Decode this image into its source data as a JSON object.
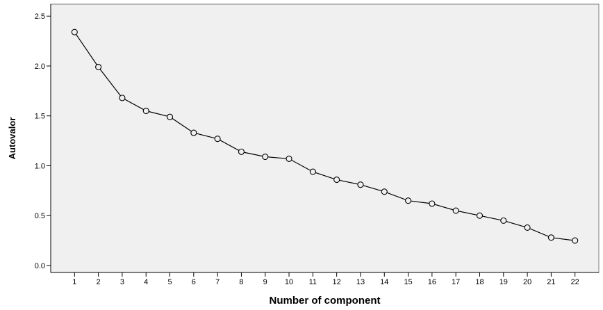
{
  "chart_data": {
    "type": "line",
    "title": "",
    "xlabel": "Number of component",
    "ylabel": "Autovalor",
    "x": [
      1,
      2,
      3,
      4,
      5,
      6,
      7,
      8,
      9,
      10,
      11,
      12,
      13,
      14,
      15,
      16,
      17,
      18,
      19,
      20,
      21,
      22
    ],
    "series": [
      {
        "values": [
          2.34,
          1.99,
          1.68,
          1.55,
          1.49,
          1.33,
          1.27,
          1.14,
          1.09,
          1.07,
          0.94,
          0.86,
          0.81,
          0.74,
          0.65,
          0.62,
          0.55,
          0.5,
          0.45,
          0.38,
          0.28,
          0.25
        ]
      }
    ],
    "ylim": [
      -0.07,
      2.62
    ],
    "xlim": [
      0,
      23
    ],
    "yticks": [
      "0.0",
      "0.5",
      "1.0",
      "1.5",
      "2.0",
      "2.5"
    ],
    "xticks": [
      "1",
      "2",
      "3",
      "4",
      "5",
      "6",
      "7",
      "8",
      "9",
      "10",
      "11",
      "12",
      "13",
      "14",
      "15",
      "16",
      "17",
      "18",
      "19",
      "20",
      "21",
      "22"
    ],
    "marker": "open-circle",
    "grid": false,
    "legend": "none",
    "colors": {
      "plot_background": "#f0f0f0",
      "line": "#000000",
      "frame": "#808080"
    }
  }
}
